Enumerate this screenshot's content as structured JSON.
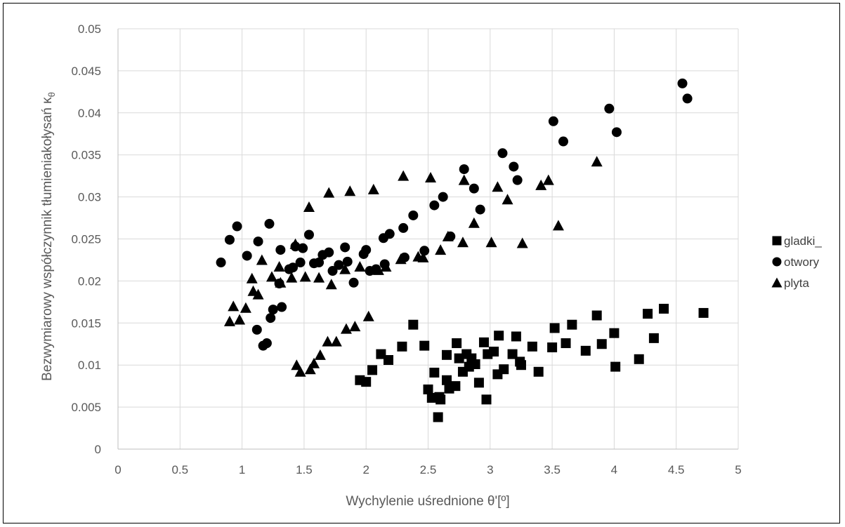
{
  "chart_data": {
    "type": "scatter",
    "title": "",
    "xlabel": "Wychylenie uśrednione θ'[º]",
    "ylabel": "Bezwymiarowy współczynnik tłumieniakołysań κθ",
    "ylabel_main": "Bezwymiarowy współczynnik tłumieniakołysań κ",
    "ylabel_sub": "θ",
    "xlim": [
      0,
      5
    ],
    "ylim": [
      0,
      0.05
    ],
    "x_ticks": [
      "0",
      "0.5",
      "1",
      "1.5",
      "2",
      "2.5",
      "3",
      "3.5",
      "4",
      "4.5",
      "5"
    ],
    "y_ticks": [
      "0",
      "0.005",
      "0.01",
      "0.015",
      "0.02",
      "0.025",
      "0.03",
      "0.035",
      "0.04",
      "0.045",
      "0.05"
    ],
    "grid": true,
    "legend_position": "right",
    "series": [
      {
        "name": "gladki_",
        "marker": "square",
        "color": "#000000",
        "points": [
          [
            1.95,
            0.0082
          ],
          [
            2.0,
            0.008
          ],
          [
            2.05,
            0.0094
          ],
          [
            2.12,
            0.0113
          ],
          [
            2.18,
            0.0106
          ],
          [
            2.29,
            0.0122
          ],
          [
            2.38,
            0.0148
          ],
          [
            2.47,
            0.0123
          ],
          [
            2.5,
            0.0071
          ],
          [
            2.53,
            0.0061
          ],
          [
            2.55,
            0.0091
          ],
          [
            2.58,
            0.0038
          ],
          [
            2.59,
            0.0062
          ],
          [
            2.6,
            0.0059
          ],
          [
            2.65,
            0.0112
          ],
          [
            2.65,
            0.0082
          ],
          [
            2.67,
            0.0072
          ],
          [
            2.72,
            0.0075
          ],
          [
            2.73,
            0.0126
          ],
          [
            2.75,
            0.0108
          ],
          [
            2.78,
            0.0092
          ],
          [
            2.81,
            0.0113
          ],
          [
            2.83,
            0.0098
          ],
          [
            2.85,
            0.0108
          ],
          [
            2.88,
            0.0101
          ],
          [
            2.91,
            0.0079
          ],
          [
            2.95,
            0.0127
          ],
          [
            2.97,
            0.0059
          ],
          [
            2.98,
            0.0113
          ],
          [
            3.03,
            0.0116
          ],
          [
            3.06,
            0.0089
          ],
          [
            3.07,
            0.0135
          ],
          [
            3.11,
            0.0095
          ],
          [
            3.18,
            0.0113
          ],
          [
            3.21,
            0.0134
          ],
          [
            3.24,
            0.0104
          ],
          [
            3.25,
            0.01
          ],
          [
            3.34,
            0.0122
          ],
          [
            3.39,
            0.0092
          ],
          [
            3.5,
            0.0121
          ],
          [
            3.52,
            0.0144
          ],
          [
            3.61,
            0.0126
          ],
          [
            3.66,
            0.0148
          ],
          [
            3.77,
            0.0117
          ],
          [
            3.86,
            0.0159
          ],
          [
            3.9,
            0.0125
          ],
          [
            4.0,
            0.0138
          ],
          [
            4.01,
            0.0098
          ],
          [
            4.2,
            0.0107
          ],
          [
            4.27,
            0.0161
          ],
          [
            4.32,
            0.0132
          ],
          [
            4.4,
            0.0167
          ],
          [
            4.72,
            0.0162
          ]
        ]
      },
      {
        "name": "otwory",
        "marker": "circle",
        "color": "#000000",
        "points": [
          [
            0.83,
            0.0222
          ],
          [
            0.9,
            0.0249
          ],
          [
            0.96,
            0.0265
          ],
          [
            1.04,
            0.023
          ],
          [
            1.12,
            0.0142
          ],
          [
            1.13,
            0.0247
          ],
          [
            1.17,
            0.0123
          ],
          [
            1.2,
            0.0126
          ],
          [
            1.22,
            0.0268
          ],
          [
            1.23,
            0.0156
          ],
          [
            1.25,
            0.0166
          ],
          [
            1.3,
            0.0197
          ],
          [
            1.31,
            0.0237
          ],
          [
            1.32,
            0.0169
          ],
          [
            1.38,
            0.0214
          ],
          [
            1.41,
            0.0216
          ],
          [
            1.43,
            0.0241
          ],
          [
            1.47,
            0.0222
          ],
          [
            1.49,
            0.0239
          ],
          [
            1.54,
            0.0255
          ],
          [
            1.58,
            0.0221
          ],
          [
            1.62,
            0.0222
          ],
          [
            1.65,
            0.0231
          ],
          [
            1.7,
            0.0234
          ],
          [
            1.73,
            0.0212
          ],
          [
            1.78,
            0.0219
          ],
          [
            1.83,
            0.024
          ],
          [
            1.85,
            0.0223
          ],
          [
            1.9,
            0.0198
          ],
          [
            1.98,
            0.0232
          ],
          [
            2.0,
            0.0237
          ],
          [
            2.03,
            0.0212
          ],
          [
            2.08,
            0.0214
          ],
          [
            2.14,
            0.0251
          ],
          [
            2.15,
            0.022
          ],
          [
            2.19,
            0.0256
          ],
          [
            2.3,
            0.0263
          ],
          [
            2.31,
            0.0228
          ],
          [
            2.38,
            0.0278
          ],
          [
            2.47,
            0.0236
          ],
          [
            2.55,
            0.029
          ],
          [
            2.62,
            0.03
          ],
          [
            2.68,
            0.0253
          ],
          [
            2.79,
            0.0333
          ],
          [
            2.87,
            0.031
          ],
          [
            2.92,
            0.0285
          ],
          [
            3.1,
            0.0352
          ],
          [
            3.19,
            0.0336
          ],
          [
            3.22,
            0.032
          ],
          [
            3.51,
            0.039
          ],
          [
            3.59,
            0.0366
          ],
          [
            3.96,
            0.0405
          ],
          [
            4.02,
            0.0377
          ],
          [
            4.55,
            0.0435
          ],
          [
            4.59,
            0.0417
          ]
        ]
      },
      {
        "name": "plyta",
        "marker": "triangle",
        "color": "#000000",
        "points": [
          [
            0.9,
            0.0152
          ],
          [
            0.93,
            0.017
          ],
          [
            0.98,
            0.0154
          ],
          [
            1.03,
            0.0168
          ],
          [
            1.08,
            0.0203
          ],
          [
            1.09,
            0.0188
          ],
          [
            1.13,
            0.0184
          ],
          [
            1.16,
            0.0225
          ],
          [
            1.24,
            0.0205
          ],
          [
            1.3,
            0.0217
          ],
          [
            1.31,
            0.0198
          ],
          [
            1.4,
            0.0204
          ],
          [
            1.43,
            0.0244
          ],
          [
            1.44,
            0.01
          ],
          [
            1.47,
            0.0092
          ],
          [
            1.51,
            0.0205
          ],
          [
            1.54,
            0.0288
          ],
          [
            1.55,
            0.0095
          ],
          [
            1.58,
            0.0102
          ],
          [
            1.62,
            0.0204
          ],
          [
            1.63,
            0.0112
          ],
          [
            1.69,
            0.0128
          ],
          [
            1.7,
            0.0305
          ],
          [
            1.72,
            0.0196
          ],
          [
            1.76,
            0.0128
          ],
          [
            1.83,
            0.0214
          ],
          [
            1.84,
            0.0143
          ],
          [
            1.87,
            0.0307
          ],
          [
            1.91,
            0.0146
          ],
          [
            1.95,
            0.0217
          ],
          [
            2.02,
            0.0158
          ],
          [
            2.06,
            0.0309
          ],
          [
            2.1,
            0.0213
          ],
          [
            2.16,
            0.0217
          ],
          [
            2.28,
            0.0226
          ],
          [
            2.3,
            0.0325
          ],
          [
            2.42,
            0.0229
          ],
          [
            2.46,
            0.0228
          ],
          [
            2.52,
            0.0323
          ],
          [
            2.6,
            0.0237
          ],
          [
            2.66,
            0.0253
          ],
          [
            2.78,
            0.0246
          ],
          [
            2.79,
            0.032
          ],
          [
            2.87,
            0.0269
          ],
          [
            3.01,
            0.0246
          ],
          [
            3.06,
            0.0312
          ],
          [
            3.14,
            0.0297
          ],
          [
            3.26,
            0.0245
          ],
          [
            3.41,
            0.0314
          ],
          [
            3.47,
            0.032
          ],
          [
            3.55,
            0.0266
          ],
          [
            3.86,
            0.0342
          ]
        ]
      }
    ]
  }
}
